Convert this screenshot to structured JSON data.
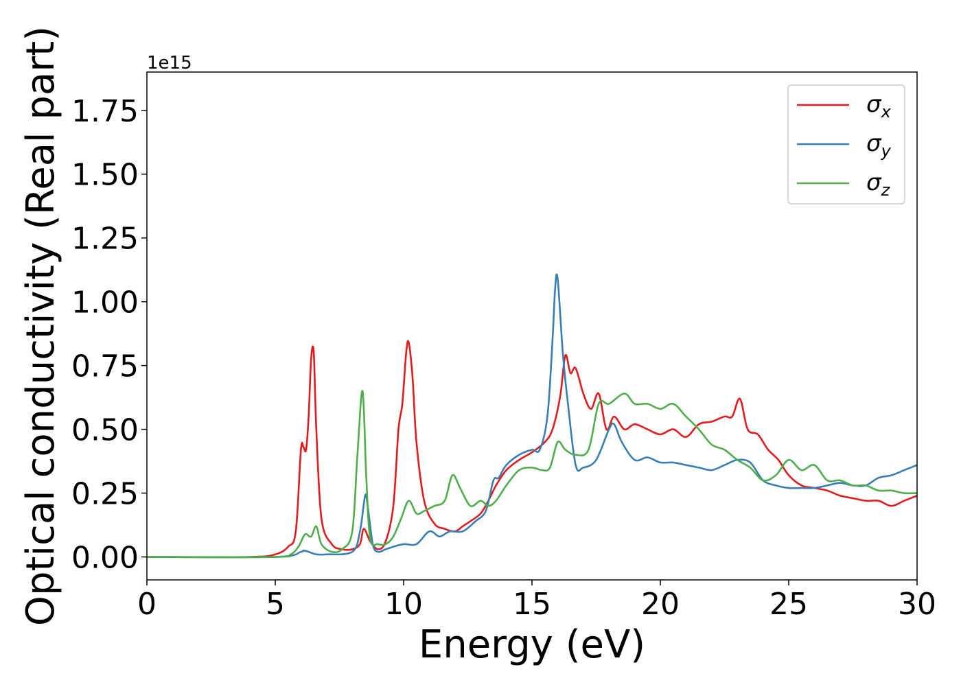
{
  "chart_data": {
    "type": "line",
    "title": "",
    "xlabel": "Energy (eV)",
    "ylabel": "Optical conductivity (Real part)",
    "y_offset_label": "1e15",
    "xlim": [
      0,
      30
    ],
    "ylim": [
      -0.09,
      1.9
    ],
    "xticks": [
      0,
      5,
      10,
      15,
      20,
      25,
      30
    ],
    "xtick_labels": [
      "0",
      "5",
      "10",
      "15",
      "20",
      "25",
      "30"
    ],
    "yticks": [
      0.0,
      0.25,
      0.5,
      0.75,
      1.0,
      1.25,
      1.5,
      1.75
    ],
    "ytick_labels": [
      "0.00",
      "0.25",
      "0.50",
      "0.75",
      "1.00",
      "1.25",
      "1.50",
      "1.75"
    ],
    "grid": false,
    "legend_position": "top-right",
    "series": [
      {
        "name": "σx",
        "symbol": "σ",
        "subscript": "x",
        "color": "#e41a1c",
        "x": [
          0,
          4,
          5,
          5.5,
          5.8,
          6.0,
          6.1,
          6.2,
          6.3,
          6.4,
          6.5,
          6.6,
          6.8,
          7.2,
          7.6,
          8.0,
          8.3,
          8.45,
          8.7,
          9.0,
          9.3,
          9.6,
          9.8,
          9.95,
          10.1,
          10.2,
          10.35,
          10.5,
          10.8,
          11.2,
          11.6,
          12.0,
          12.3,
          12.6,
          13.0,
          13.3,
          13.6,
          14.0,
          14.5,
          15.0,
          15.5,
          15.8,
          16.1,
          16.3,
          16.5,
          16.7,
          17.0,
          17.3,
          17.6,
          17.9,
          18.2,
          18.6,
          19.0,
          19.5,
          20.0,
          20.5,
          21.0,
          21.5,
          22.0,
          22.5,
          22.8,
          23.1,
          23.4,
          23.8,
          24.2,
          24.6,
          25.0,
          25.5,
          26.0,
          26.5,
          27.0,
          27.5,
          28.0,
          28.5,
          29.0,
          29.5,
          30.0
        ],
        "values": [
          0,
          0,
          0.01,
          0.04,
          0.1,
          0.42,
          0.43,
          0.42,
          0.55,
          0.78,
          0.8,
          0.5,
          0.15,
          0.05,
          0.03,
          0.03,
          0.05,
          0.11,
          0.06,
          0.03,
          0.06,
          0.2,
          0.5,
          0.6,
          0.8,
          0.84,
          0.7,
          0.45,
          0.22,
          0.13,
          0.11,
          0.1,
          0.12,
          0.14,
          0.17,
          0.22,
          0.28,
          0.34,
          0.38,
          0.41,
          0.45,
          0.5,
          0.63,
          0.79,
          0.72,
          0.74,
          0.64,
          0.58,
          0.64,
          0.5,
          0.55,
          0.5,
          0.52,
          0.5,
          0.48,
          0.5,
          0.47,
          0.52,
          0.53,
          0.55,
          0.55,
          0.62,
          0.5,
          0.48,
          0.42,
          0.38,
          0.32,
          0.28,
          0.27,
          0.26,
          0.24,
          0.23,
          0.22,
          0.22,
          0.2,
          0.22,
          0.24
        ]
      },
      {
        "name": "σy",
        "symbol": "σ",
        "subscript": "y",
        "color": "#377eb8",
        "x": [
          0,
          5,
          6.0,
          6.1,
          6.3,
          6.6,
          7.0,
          8.0,
          8.3,
          8.5,
          8.6,
          8.8,
          9.0,
          9.3,
          9.6,
          10.0,
          10.5,
          11.0,
          11.4,
          11.8,
          12.3,
          12.8,
          13.2,
          13.5,
          13.7,
          14.0,
          14.5,
          15.0,
          15.3,
          15.6,
          15.8,
          15.9,
          16.0,
          16.2,
          16.4,
          16.7,
          17.0,
          17.5,
          18.0,
          18.2,
          18.5,
          19.0,
          19.5,
          20.0,
          20.5,
          21.0,
          21.5,
          22.0,
          22.5,
          23.0,
          23.5,
          24.0,
          24.5,
          25.0,
          25.5,
          26.0,
          26.5,
          27.0,
          27.5,
          28.0,
          28.5,
          29.0,
          29.5,
          30.0
        ],
        "values": [
          0,
          0,
          0.02,
          0.025,
          0.02,
          0.01,
          0.01,
          0.02,
          0.1,
          0.24,
          0.2,
          0.05,
          0.02,
          0.03,
          0.04,
          0.05,
          0.05,
          0.1,
          0.08,
          0.1,
          0.1,
          0.14,
          0.18,
          0.3,
          0.31,
          0.36,
          0.4,
          0.42,
          0.42,
          0.55,
          0.85,
          1.05,
          1.09,
          0.8,
          0.6,
          0.36,
          0.35,
          0.38,
          0.5,
          0.52,
          0.45,
          0.38,
          0.39,
          0.37,
          0.37,
          0.36,
          0.35,
          0.34,
          0.36,
          0.38,
          0.37,
          0.3,
          0.28,
          0.27,
          0.27,
          0.27,
          0.28,
          0.29,
          0.28,
          0.28,
          0.31,
          0.32,
          0.34,
          0.36
        ]
      },
      {
        "name": "σz",
        "symbol": "σ",
        "subscript": "z",
        "color": "#4daf4a",
        "x": [
          0,
          5,
          5.6,
          5.9,
          6.1,
          6.2,
          6.4,
          6.6,
          6.8,
          7.2,
          7.6,
          8.0,
          8.2,
          8.4,
          8.55,
          8.7,
          9.0,
          9.3,
          9.6,
          9.9,
          10.2,
          10.5,
          10.8,
          11.2,
          11.6,
          11.9,
          12.2,
          12.6,
          13.0,
          13.3,
          13.6,
          14.0,
          14.5,
          15.0,
          15.4,
          15.7,
          16.0,
          16.3,
          16.7,
          17.2,
          17.6,
          18.0,
          18.6,
          19.0,
          19.5,
          20.0,
          20.5,
          21.0,
          21.5,
          22.0,
          22.5,
          23.0,
          23.5,
          24.0,
          24.5,
          25.0,
          25.5,
          26.0,
          26.5,
          27.0,
          27.5,
          28.0,
          28.5,
          29.0,
          29.5,
          30.0
        ],
        "values": [
          0,
          0,
          0.01,
          0.04,
          0.08,
          0.09,
          0.08,
          0.12,
          0.05,
          0.02,
          0.03,
          0.1,
          0.4,
          0.65,
          0.3,
          0.07,
          0.05,
          0.05,
          0.08,
          0.15,
          0.22,
          0.17,
          0.18,
          0.2,
          0.22,
          0.32,
          0.27,
          0.2,
          0.22,
          0.2,
          0.22,
          0.28,
          0.34,
          0.35,
          0.34,
          0.35,
          0.45,
          0.42,
          0.4,
          0.42,
          0.6,
          0.6,
          0.64,
          0.6,
          0.6,
          0.58,
          0.6,
          0.55,
          0.5,
          0.44,
          0.42,
          0.38,
          0.35,
          0.3,
          0.32,
          0.38,
          0.34,
          0.36,
          0.3,
          0.3,
          0.28,
          0.28,
          0.26,
          0.26,
          0.25,
          0.25
        ]
      }
    ]
  }
}
